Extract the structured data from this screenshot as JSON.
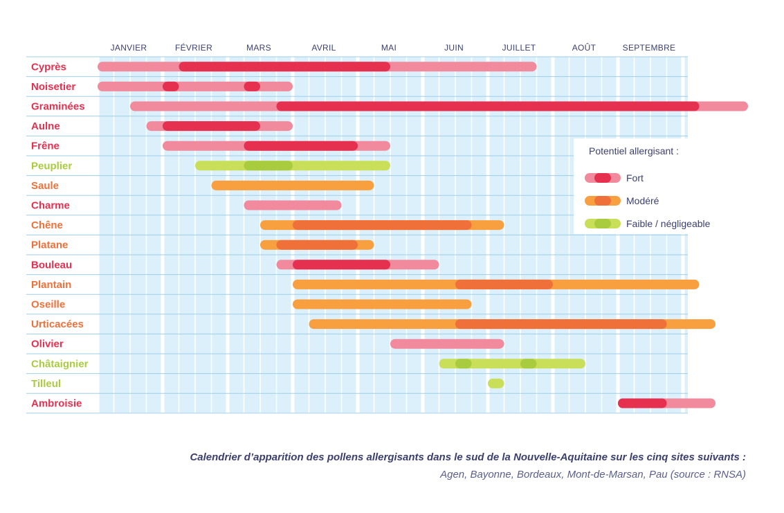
{
  "chart_data": {
    "type": "gantt",
    "months": [
      "JANVIER",
      "FÉVRIER",
      "MARS",
      "AVRIL",
      "MAI",
      "JUIN",
      "JUILLET",
      "AOÛT",
      "SEPTEMBRE"
    ],
    "legend": {
      "title": "Potentiel allergisant :",
      "levels": [
        {
          "key": "fort",
          "label": "Fort",
          "light": "#f08a9c",
          "dark": "#e5304f"
        },
        {
          "key": "modere",
          "label": "Modéré",
          "light": "#f8a040",
          "dark": "#f0703a"
        },
        {
          "key": "faible",
          "label": "Faible / négligeable",
          "light": "#c9df5a",
          "dark": "#a9cc3f"
        }
      ]
    },
    "rows": [
      {
        "name": "Cyprès",
        "level": "fort",
        "start": 0.0,
        "end": 6.75,
        "peaks": [
          [
            1.25,
            4.5
          ]
        ]
      },
      {
        "name": "Noisetier",
        "level": "fort",
        "start": 0.0,
        "end": 3.0,
        "peaks": [
          [
            1.0,
            1.25
          ],
          [
            2.25,
            2.5
          ]
        ]
      },
      {
        "name": "Graminées",
        "level": "fort",
        "start": 0.5,
        "end": 10.0,
        "peaks": [
          [
            2.75,
            9.25
          ]
        ]
      },
      {
        "name": "Aulne",
        "level": "fort",
        "start": 0.75,
        "end": 3.0,
        "peaks": [
          [
            1.0,
            2.5
          ]
        ]
      },
      {
        "name": "Frêne",
        "level": "fort",
        "start": 1.0,
        "end": 4.5,
        "peaks": [
          [
            2.25,
            4.0
          ]
        ]
      },
      {
        "name": "Peuplier",
        "level": "faible",
        "start": 1.5,
        "end": 4.5,
        "peaks": [
          [
            2.25,
            3.0
          ]
        ]
      },
      {
        "name": "Saule",
        "level": "modere",
        "start": 1.75,
        "end": 4.25,
        "peaks": []
      },
      {
        "name": "Charme",
        "level": "fort",
        "start": 2.25,
        "end": 3.75,
        "peaks": []
      },
      {
        "name": "Chêne",
        "level": "modere",
        "start": 2.5,
        "end": 6.25,
        "peaks": [
          [
            3.0,
            5.75
          ]
        ]
      },
      {
        "name": "Platane",
        "level": "modere",
        "start": 2.5,
        "end": 4.25,
        "peaks": [
          [
            2.75,
            4.0
          ]
        ]
      },
      {
        "name": "Bouleau",
        "level": "fort",
        "start": 2.75,
        "end": 5.25,
        "peaks": [
          [
            3.0,
            4.5
          ]
        ]
      },
      {
        "name": "Plantain",
        "level": "modere",
        "start": 3.0,
        "end": 9.25,
        "peaks": [
          [
            5.5,
            7.0
          ]
        ]
      },
      {
        "name": "Oseille",
        "level": "modere",
        "start": 3.0,
        "end": 5.75,
        "peaks": []
      },
      {
        "name": "Urticacées",
        "level": "modere",
        "start": 3.25,
        "end": 9.5,
        "peaks": [
          [
            5.5,
            8.75
          ]
        ]
      },
      {
        "name": "Olivier",
        "level": "fort",
        "start": 4.5,
        "end": 6.25,
        "peaks": []
      },
      {
        "name": "Châtaignier",
        "level": "faible",
        "start": 5.25,
        "end": 7.5,
        "peaks": [
          [
            5.5,
            5.75
          ],
          [
            6.5,
            6.75
          ]
        ]
      },
      {
        "name": "Tilleul",
        "level": "faible",
        "start": 6.0,
        "end": 6.25,
        "peaks": []
      },
      {
        "name": "Ambroisie",
        "level": "fort",
        "start": 8.0,
        "end": 9.5,
        "peaks": [
          [
            8.0,
            8.75
          ]
        ]
      }
    ]
  },
  "caption": {
    "main": "Calendrier d’apparition des pollens allergisants dans le sud de la Nouvelle-Aquitaine sur les cinq sites suivants :",
    "sub": "Agen, Bayonne, Bordeaux, Mont-de-Marsan, Pau (source : RNSA)"
  }
}
